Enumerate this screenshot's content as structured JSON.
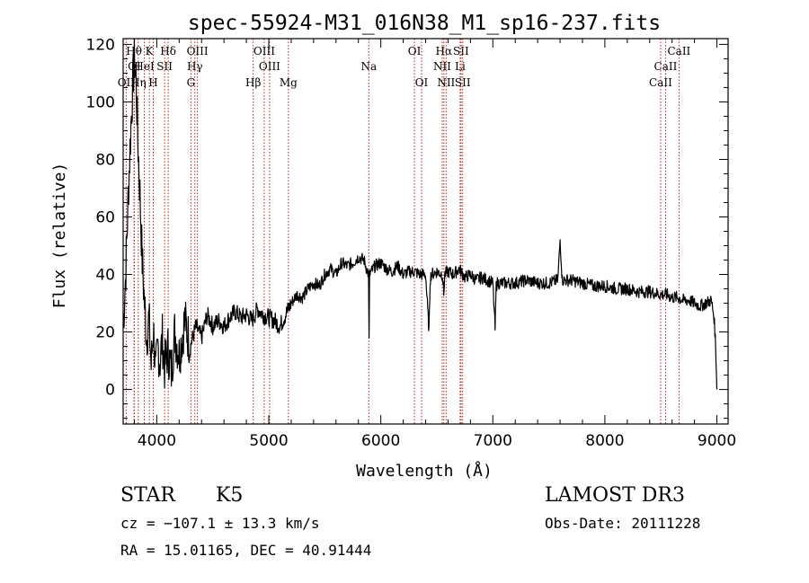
{
  "chart_data": {
    "type": "line",
    "title": "spec-55924-M31_016N38_M1_sp16-237.fits",
    "xlabel": "Wavelength (Å)",
    "ylabel": "Flux (relative)",
    "xlim": [
      3700,
      9100
    ],
    "ylim": [
      -12,
      122
    ],
    "xticks": [
      4000,
      5000,
      6000,
      7000,
      8000,
      9000
    ],
    "yticks": [
      0,
      20,
      40,
      60,
      80,
      100,
      120
    ],
    "grid": false,
    "series": [
      {
        "name": "flux",
        "x": [
          3700,
          3720,
          3750,
          3770,
          3785,
          3800,
          3815,
          3830,
          3850,
          3870,
          3890,
          3910,
          3930,
          3950,
          3970,
          3990,
          4010,
          4030,
          4050,
          4070,
          4100,
          4130,
          4160,
          4200,
          4250,
          4300,
          4350,
          4400,
          4450,
          4500,
          4550,
          4600,
          4650,
          4700,
          4750,
          4800,
          4850,
          4900,
          4950,
          5000,
          5050,
          5100,
          5150,
          5200,
          5250,
          5300,
          5350,
          5400,
          5450,
          5500,
          5550,
          5600,
          5650,
          5700,
          5750,
          5800,
          5850,
          5890,
          5895,
          5900,
          5950,
          6000,
          6050,
          6100,
          6150,
          6200,
          6250,
          6300,
          6350,
          6400,
          6430,
          6440,
          6450,
          6500,
          6550,
          6562,
          6570,
          6600,
          6650,
          6700,
          6750,
          6800,
          6850,
          6900,
          6950,
          7000,
          7020,
          7030,
          7040,
          7100,
          7200,
          7300,
          7400,
          7500,
          7580,
          7600,
          7620,
          7700,
          7800,
          7900,
          8000,
          8100,
          8200,
          8300,
          8400,
          8500,
          8550,
          8600,
          8650,
          8700,
          8750,
          8800,
          8850,
          8900,
          8950,
          8975,
          8985,
          8995,
          9000
        ],
        "values": [
          22,
          38,
          72,
          92,
          105,
          116,
          108,
          88,
          68,
          45,
          30,
          18,
          25,
          8,
          22,
          5,
          15,
          10,
          18,
          8,
          14,
          6,
          20,
          12,
          24,
          15,
          22,
          18,
          26,
          22,
          24,
          22,
          25,
          27,
          25,
          26,
          24,
          28,
          26,
          25,
          24,
          22,
          26,
          30,
          33,
          32,
          35,
          37,
          36,
          40,
          42,
          40,
          44,
          43,
          44,
          46,
          45,
          40,
          17,
          40,
          43,
          44,
          42,
          41,
          43,
          40,
          41,
          41,
          40,
          40,
          20,
          38,
          40,
          41,
          40,
          33,
          40,
          41,
          40,
          42,
          39,
          40,
          38,
          39,
          38,
          37,
          21,
          36,
          37,
          37,
          37,
          38,
          37,
          37,
          38,
          52,
          38,
          38,
          37,
          36,
          36,
          35,
          35,
          34,
          34,
          33,
          33,
          32,
          32,
          31,
          31,
          30,
          29,
          30,
          31,
          25,
          18,
          8,
          0
        ]
      }
    ],
    "line_markers": [
      {
        "label": "Hθ",
        "x": 3797,
        "row": 1
      },
      {
        "label": "K",
        "x": 3934,
        "row": 1
      },
      {
        "label": "Hδ",
        "x": 4102,
        "row": 1
      },
      {
        "label": "OIII",
        "x": 4363,
        "row": 1
      },
      {
        "label": "OIII",
        "x": 4959,
        "row": 1
      },
      {
        "label": "OI",
        "x": 6300,
        "row": 1
      },
      {
        "label": "Hα",
        "x": 6563,
        "row": 1
      },
      {
        "label": "SII",
        "x": 6716,
        "row": 1
      },
      {
        "label": "CaII",
        "x": 8662,
        "row": 1
      },
      {
        "label": "OI",
        "x": 3800,
        "row": 2
      },
      {
        "label": "HeI",
        "x": 3889,
        "row": 2
      },
      {
        "label": "SII",
        "x": 4070,
        "row": 2
      },
      {
        "label": "Hγ",
        "x": 4340,
        "row": 2
      },
      {
        "label": "OIII",
        "x": 5007,
        "row": 2
      },
      {
        "label": "Na",
        "x": 5893,
        "row": 2
      },
      {
        "label": "NII",
        "x": 6548,
        "row": 2
      },
      {
        "label": "Li",
        "x": 6708,
        "row": 2
      },
      {
        "label": "CaII",
        "x": 8542,
        "row": 2
      },
      {
        "label": "OII",
        "x": 3727,
        "row": 3
      },
      {
        "label": "Hη",
        "x": 3835,
        "row": 3
      },
      {
        "label": "H",
        "x": 3969,
        "row": 3
      },
      {
        "label": "G",
        "x": 4305,
        "row": 3
      },
      {
        "label": "Hβ",
        "x": 4861,
        "row": 3
      },
      {
        "label": "Mg",
        "x": 5175,
        "row": 3
      },
      {
        "label": "OI",
        "x": 6364,
        "row": 3
      },
      {
        "label": "NII",
        "x": 6583,
        "row": 3
      },
      {
        "label": "SII",
        "x": 6731,
        "row": 3
      },
      {
        "label": "CaII",
        "x": 8498,
        "row": 3
      }
    ]
  },
  "info": {
    "object_class": "STAR",
    "subclass": "K5",
    "survey": "LAMOST DR3",
    "cz": "cz = −107.1 ± 13.3 km/s",
    "obs_date": "Obs-Date: 20111228",
    "coords": "RA =  15.01165, DEC =  40.91444"
  }
}
